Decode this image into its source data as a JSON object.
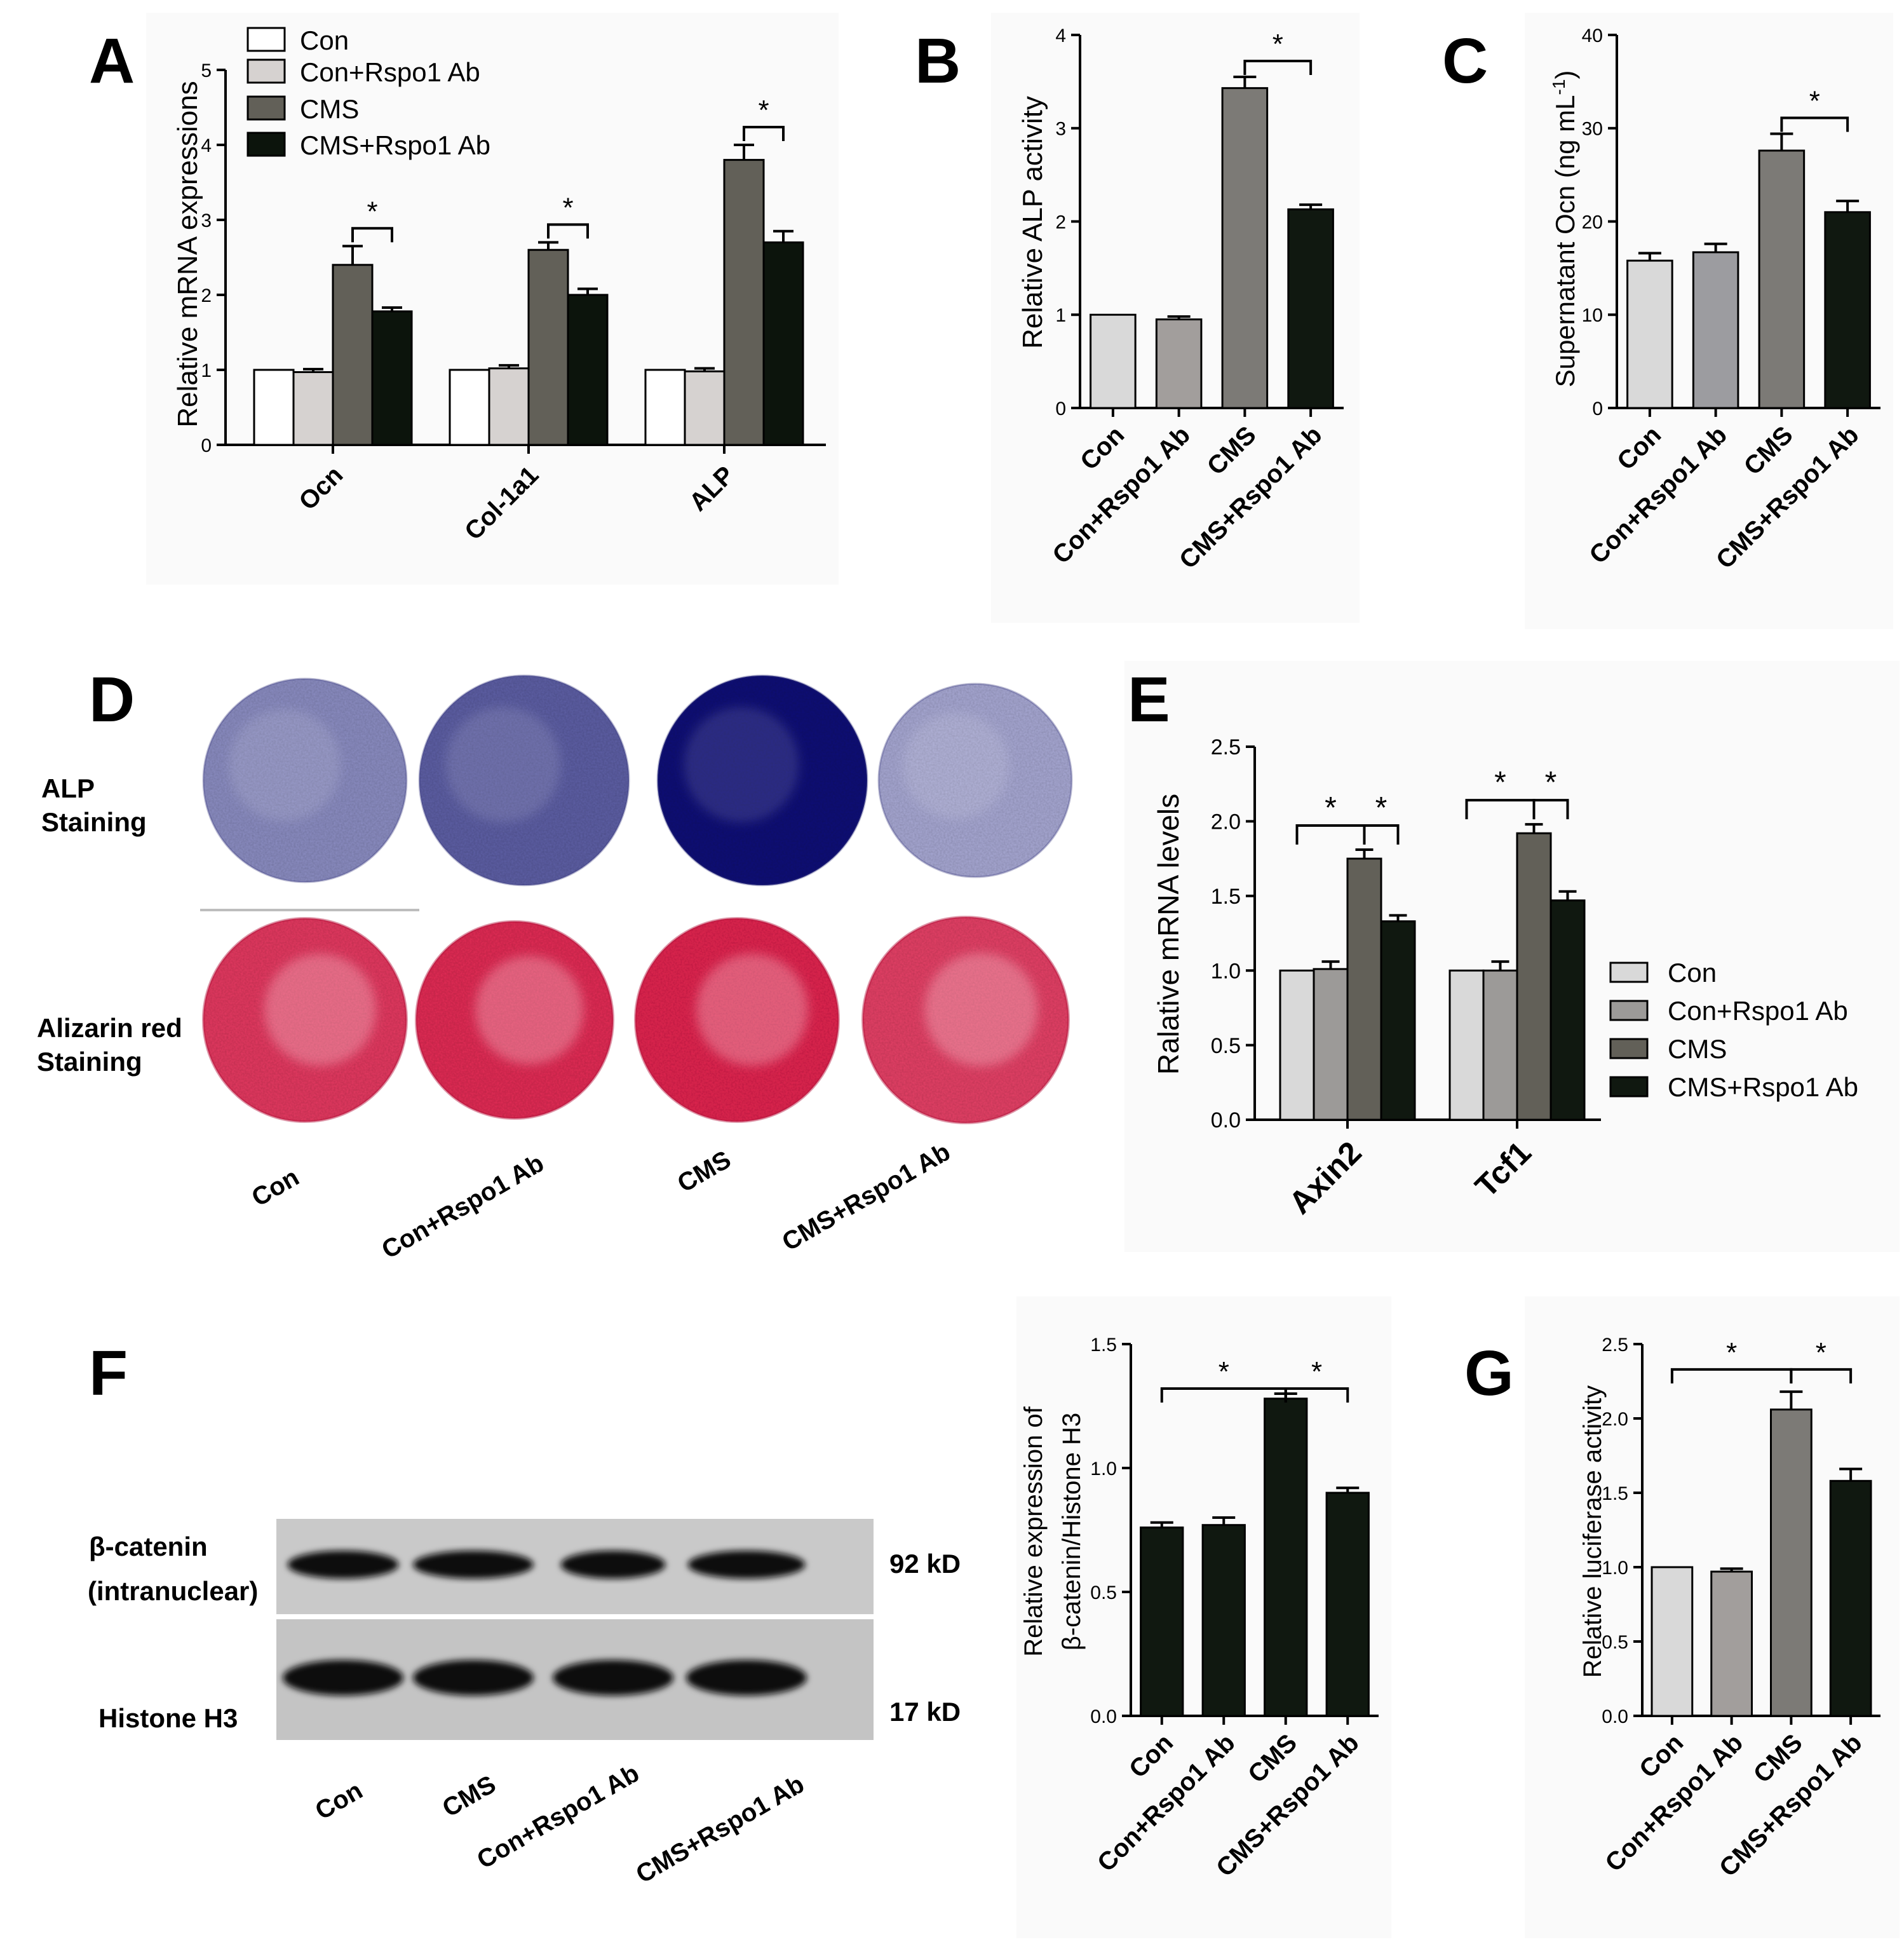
{
  "figure": {
    "panel_letters": [
      "A",
      "B",
      "C",
      "D",
      "E",
      "F",
      "G"
    ],
    "colors": {
      "con": "#ffffff",
      "con_light": "#d9d9d9",
      "con_rspo1": "#d6d2d0",
      "con_rspo1_mid": "#9a9a9a",
      "cms": "#626058",
      "cms_rspo1": "#0c140c",
      "black_bar": "#101810",
      "alp_stain": "#2a2f8f",
      "alizarin": "#e64a6c"
    }
  },
  "chart_data": [
    {
      "id": "A",
      "type": "bar",
      "ylabel": "Relative mRNA expressions",
      "ylim": [
        0,
        5
      ],
      "yticks": [
        0,
        1,
        2,
        3,
        4,
        5
      ],
      "categories": [
        "Ocn",
        "Col-1a1",
        "ALP"
      ],
      "series": [
        {
          "name": "Con",
          "values": [
            1.0,
            1.0,
            1.0
          ],
          "errors": [
            0,
            0,
            0
          ]
        },
        {
          "name": "Con+Rspo1 Ab",
          "values": [
            0.97,
            1.02,
            0.98
          ],
          "errors": [
            0.04,
            0.04,
            0.04
          ]
        },
        {
          "name": "CMS",
          "values": [
            2.4,
            2.6,
            3.8
          ],
          "errors": [
            0.25,
            0.1,
            0.2
          ]
        },
        {
          "name": "CMS+Rspo1 Ab",
          "values": [
            1.78,
            2.0,
            2.7
          ],
          "errors": [
            0.05,
            0.08,
            0.15
          ]
        }
      ],
      "annotations": [
        "*",
        "*",
        "*"
      ],
      "legend": "top-left"
    },
    {
      "id": "B",
      "type": "bar",
      "ylabel": "Relative ALP activity",
      "ylim": [
        0,
        4
      ],
      "yticks": [
        0,
        1,
        2,
        3,
        4
      ],
      "categories": [
        "Con",
        "Con+Rspo1 Ab",
        "CMS",
        "CMS+Rspo1 Ab"
      ],
      "values": [
        1.0,
        0.95,
        3.43,
        2.13
      ],
      "errors": [
        0,
        0.03,
        0.12,
        0.05
      ],
      "annotations": [
        "*"
      ]
    },
    {
      "id": "C",
      "type": "bar",
      "ylabel": "Supernatant Ocn (ng mL",
      "ylabel_sup": "-1",
      "ylabel_end": ")",
      "ylim": [
        0,
        40
      ],
      "yticks": [
        0,
        10,
        20,
        30,
        40
      ],
      "categories": [
        "Con",
        "Con+Rspo1 Ab",
        "CMS",
        "CMS+Rspo1 Ab"
      ],
      "values": [
        15.8,
        16.7,
        27.6,
        21.0
      ],
      "errors": [
        0.8,
        0.9,
        1.8,
        1.2
      ],
      "annotations": [
        "*"
      ]
    },
    {
      "id": "E",
      "type": "bar",
      "ylabel": "Ralative mRNA levels",
      "ylim": [
        0,
        2.5
      ],
      "yticks": [
        "0.0",
        "0.5",
        "1.0",
        "1.5",
        "2.0",
        "2.5"
      ],
      "categories": [
        "Axin2",
        "Tcf1"
      ],
      "series": [
        {
          "name": "Con",
          "values": [
            1.0,
            1.0
          ],
          "errors": [
            0,
            0
          ]
        },
        {
          "name": "Con+Rspo1 Ab",
          "values": [
            1.01,
            1.0
          ],
          "errors": [
            0.05,
            0.06
          ]
        },
        {
          "name": "CMS",
          "values": [
            1.75,
            1.92
          ],
          "errors": [
            0.06,
            0.06
          ]
        },
        {
          "name": "CMS+Rspo1 Ab",
          "values": [
            1.33,
            1.47
          ],
          "errors": [
            0.04,
            0.06
          ]
        }
      ],
      "annotations": [
        "*",
        "*",
        "*",
        "*"
      ],
      "legend": "right"
    },
    {
      "id": "F",
      "type": "bar",
      "ylabel_line1": "Relative expression of",
      "ylabel_line2": "β-catenin/Histone H3",
      "ylim": [
        0,
        1.5
      ],
      "yticks": [
        "0.0",
        "0.5",
        "1.0",
        "1.5"
      ],
      "categories": [
        "Con",
        "Con+Rspo1 Ab",
        "CMS",
        "CMS+Rspo1 Ab"
      ],
      "values": [
        0.76,
        0.77,
        1.28,
        0.9
      ],
      "errors": [
        0.02,
        0.03,
        0.02,
        0.02
      ],
      "annotations": [
        "*",
        "*"
      ]
    },
    {
      "id": "G",
      "type": "bar",
      "ylabel": "Relative luciferase activity",
      "ylim": [
        0,
        2.5
      ],
      "yticks": [
        "0.0",
        "0.5",
        "1.0",
        "1.5",
        "2.0",
        "2.5"
      ],
      "categories": [
        "Con",
        "Con+Rspo1 Ab",
        "CMS",
        "CMS+Rspo1 Ab"
      ],
      "values": [
        1.0,
        0.97,
        2.06,
        1.58
      ],
      "errors": [
        0,
        0.02,
        0.12,
        0.08
      ],
      "annotations": [
        "*",
        "*"
      ]
    }
  ],
  "panel_D": {
    "row_labels": [
      {
        "line1": "ALP",
        "line2": "Staining"
      },
      {
        "line1": "Alizarin red",
        "line2": "Staining"
      }
    ],
    "column_labels": [
      "Con",
      "Con+Rspo1 Ab",
      "CMS",
      "CMS+Rspo1 Ab"
    ],
    "alp_intensity": [
      0.35,
      0.6,
      1.0,
      0.2
    ],
    "alizarin_intensity": [
      0.8,
      0.9,
      0.95,
      0.75
    ]
  },
  "panel_F_blot": {
    "bands": [
      {
        "line1": "β-catenin",
        "line2": "(intranuclear)",
        "size": "92 kD"
      },
      {
        "line1": "Histone H3",
        "line2": "",
        "size": "17 kD"
      }
    ],
    "lane_labels": [
      "Con",
      "CMS",
      "Con+Rspo1 Ab",
      "CMS+Rspo1 Ab"
    ]
  }
}
